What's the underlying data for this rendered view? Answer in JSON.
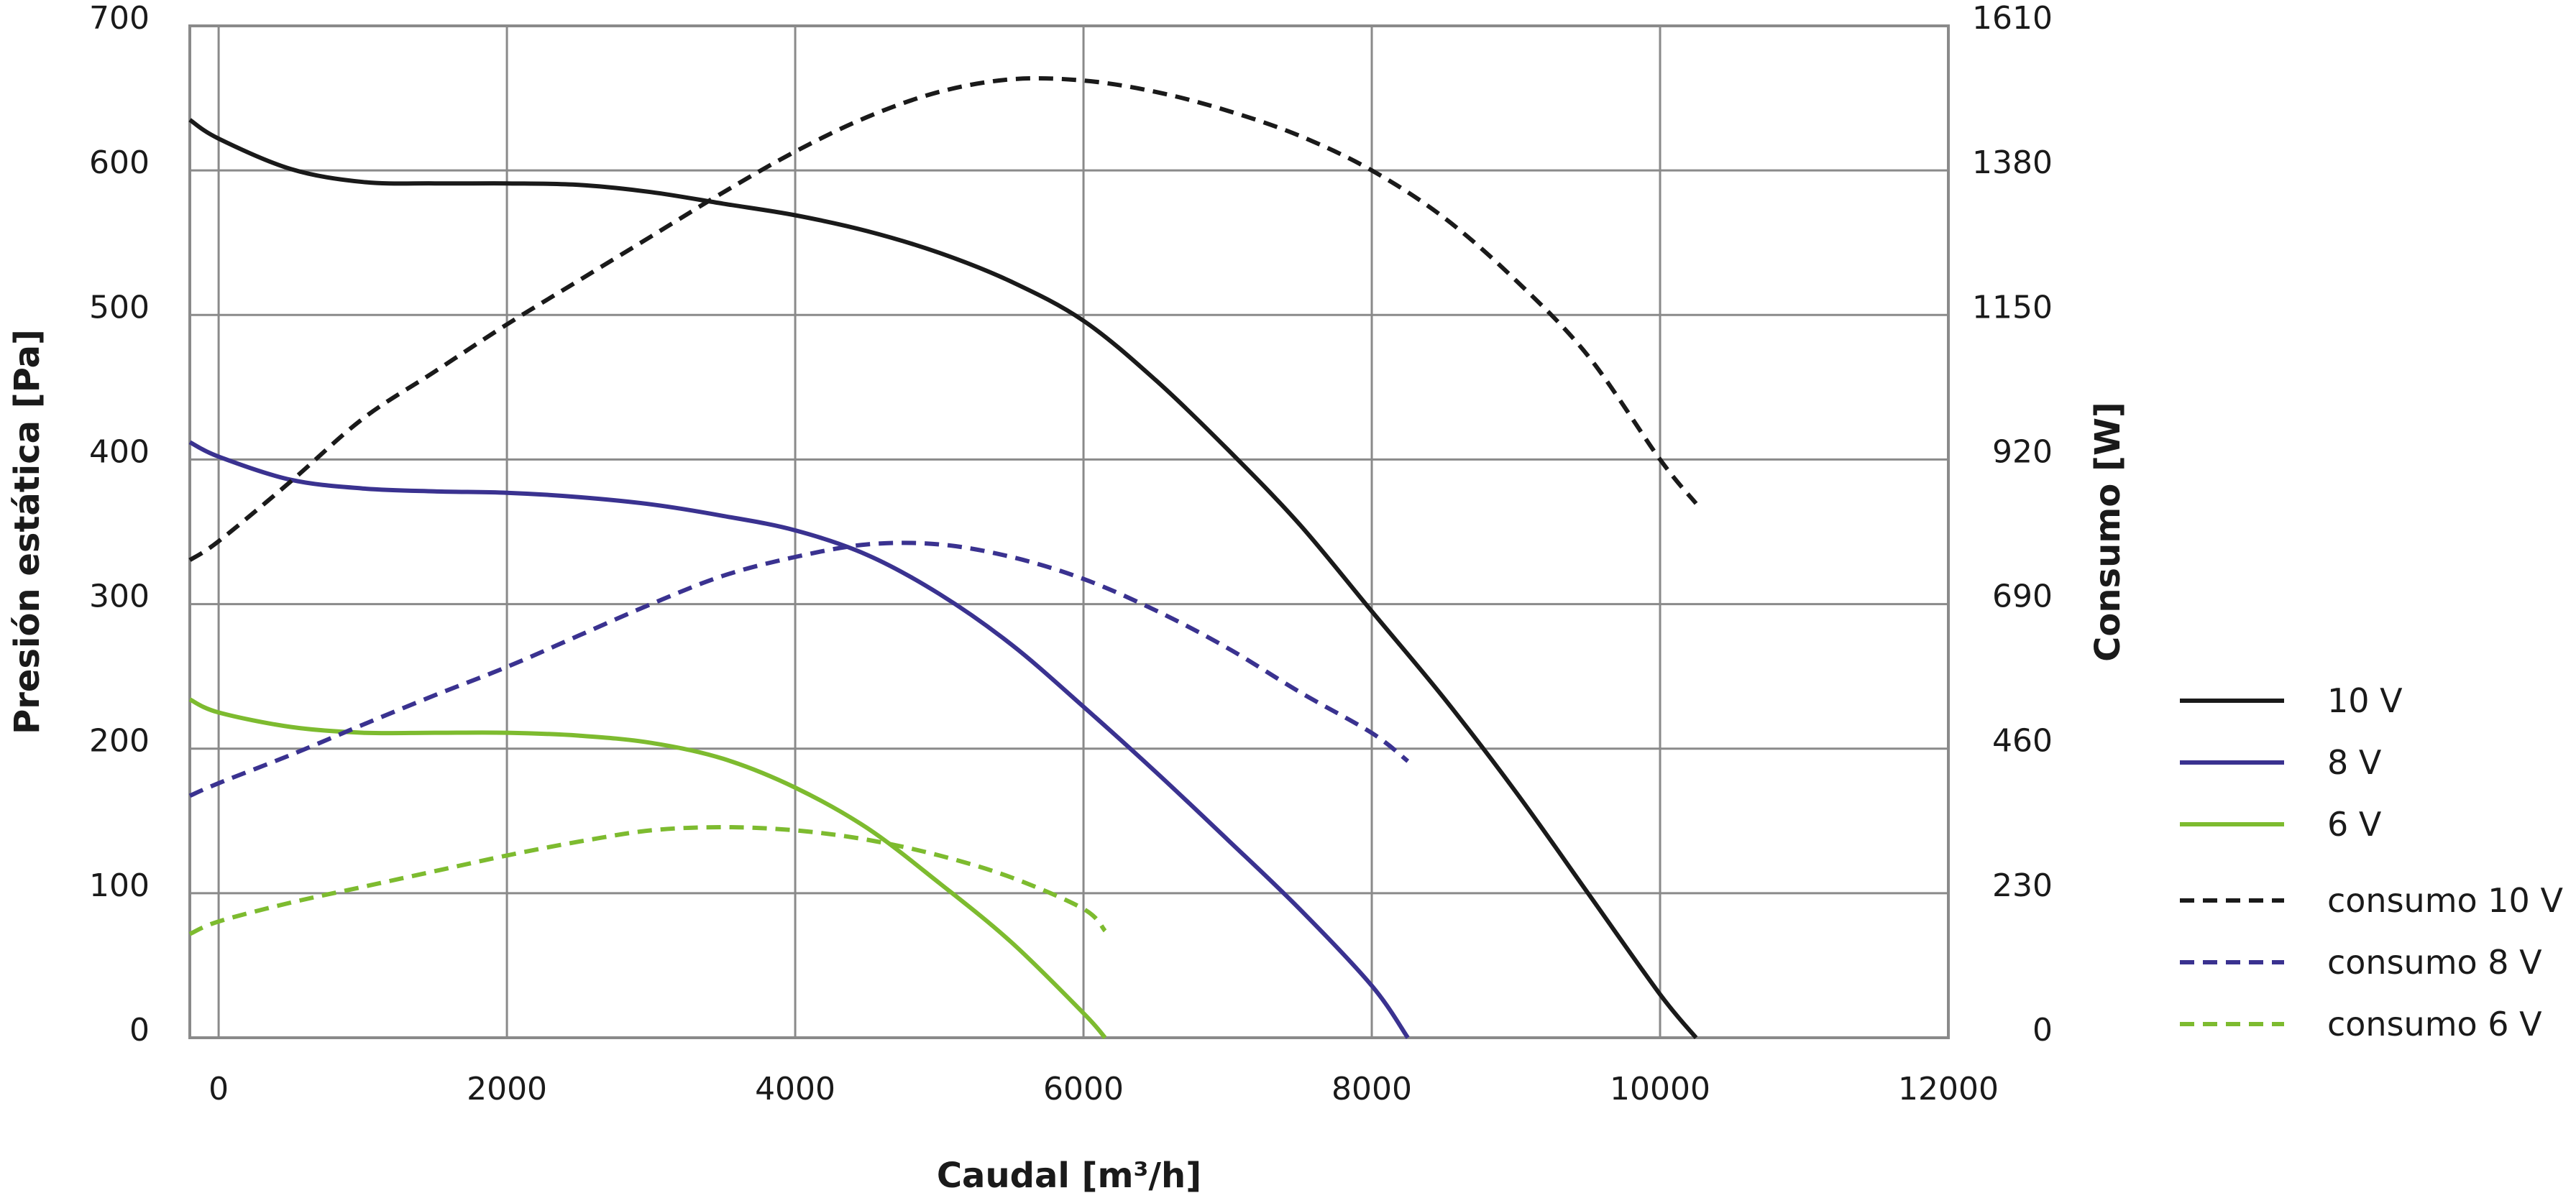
{
  "chart_data": {
    "type": "line",
    "xlabel": "Caudal [m³/h]",
    "ylabel": "Presión estática [Pa]",
    "y2label": "Consumo [W]",
    "xlim": [
      -200,
      12000
    ],
    "ylim": [
      0,
      700
    ],
    "y2lim": [
      0,
      1610
    ],
    "xticks": [
      "0",
      "2000",
      "4000",
      "6000",
      "8000",
      "10000",
      "12000"
    ],
    "yticks": [
      "0",
      "100",
      "200",
      "300",
      "400",
      "500",
      "600",
      "700"
    ],
    "y2ticks": [
      "0",
      "230",
      "460",
      "690",
      "920",
      "1150",
      "1380",
      "1610"
    ],
    "grid": true,
    "legend_position": "right",
    "series": [
      {
        "name": "10 V",
        "axis": "left",
        "style": "solid",
        "color": "#1a1a1a",
        "x": [
          -200,
          0,
          500,
          1000,
          1500,
          2000,
          2500,
          3000,
          3500,
          4000,
          4500,
          5000,
          5500,
          6000,
          6500,
          7000,
          7500,
          8000,
          8500,
          9000,
          9500,
          10000,
          10250
        ],
        "y": [
          635,
          622,
          601,
          592,
          591,
          591,
          590,
          585,
          577,
          569,
          558,
          543,
          523,
          496,
          455,
          407,
          355,
          295,
          235,
          170,
          100,
          30,
          0
        ]
      },
      {
        "name": "8 V",
        "axis": "left",
        "style": "solid",
        "color": "#3a3290",
        "x": [
          -200,
          0,
          500,
          1000,
          1500,
          2000,
          2500,
          3000,
          3500,
          4000,
          4500,
          5000,
          5500,
          6000,
          6500,
          7000,
          7500,
          8000,
          8250
        ],
        "y": [
          412,
          402,
          386,
          380,
          378,
          377,
          374,
          369,
          361,
          351,
          334,
          307,
          272,
          229,
          184,
          137,
          89,
          36,
          0
        ]
      },
      {
        "name": "6 V",
        "axis": "left",
        "style": "solid",
        "color": "#7dbb2f",
        "x": [
          -200,
          0,
          500,
          1000,
          1500,
          2000,
          2500,
          3000,
          3500,
          4000,
          4500,
          5000,
          5500,
          6000,
          6150
        ],
        "y": [
          234,
          225,
          215,
          211,
          211,
          211,
          209,
          204,
          193,
          173,
          145,
          107,
          66,
          17,
          0
        ]
      },
      {
        "name": "consumo 10 V",
        "axis": "right",
        "style": "dashed",
        "color": "#1a1a1a",
        "x": [
          -200,
          0,
          500,
          1000,
          1500,
          2000,
          2500,
          3000,
          3500,
          4000,
          4500,
          5000,
          5500,
          6000,
          6500,
          7000,
          7500,
          8000,
          8500,
          9000,
          9500,
          10000,
          10250
        ],
        "y": [
          760,
          790,
          885,
          985,
          1060,
          1135,
          1205,
          1275,
          1345,
          1410,
          1465,
          1505,
          1525,
          1523,
          1505,
          1475,
          1435,
          1380,
          1305,
          1205,
          1085,
          920,
          850
        ]
      },
      {
        "name": "consumo 8 V",
        "axis": "right",
        "style": "dashed",
        "color": "#3a3290",
        "x": [
          -200,
          0,
          500,
          1000,
          1500,
          2000,
          2500,
          3000,
          3500,
          4000,
          4500,
          5000,
          5500,
          6000,
          6500,
          7000,
          7500,
          8000,
          8250
        ],
        "y": [
          385,
          405,
          450,
          498,
          545,
          590,
          640,
          690,
          735,
          765,
          785,
          785,
          765,
          730,
          680,
          620,
          550,
          485,
          440
        ]
      },
      {
        "name": "consumo 6 V",
        "axis": "right",
        "style": "dashed",
        "color": "#7dbb2f",
        "x": [
          -200,
          0,
          500,
          1000,
          1500,
          2000,
          2500,
          3000,
          3500,
          4000,
          4500,
          5000,
          5500,
          6000,
          6150
        ],
        "y": [
          165,
          185,
          215,
          240,
          265,
          290,
          312,
          330,
          335,
          330,
          315,
          290,
          255,
          205,
          170
        ]
      }
    ]
  }
}
